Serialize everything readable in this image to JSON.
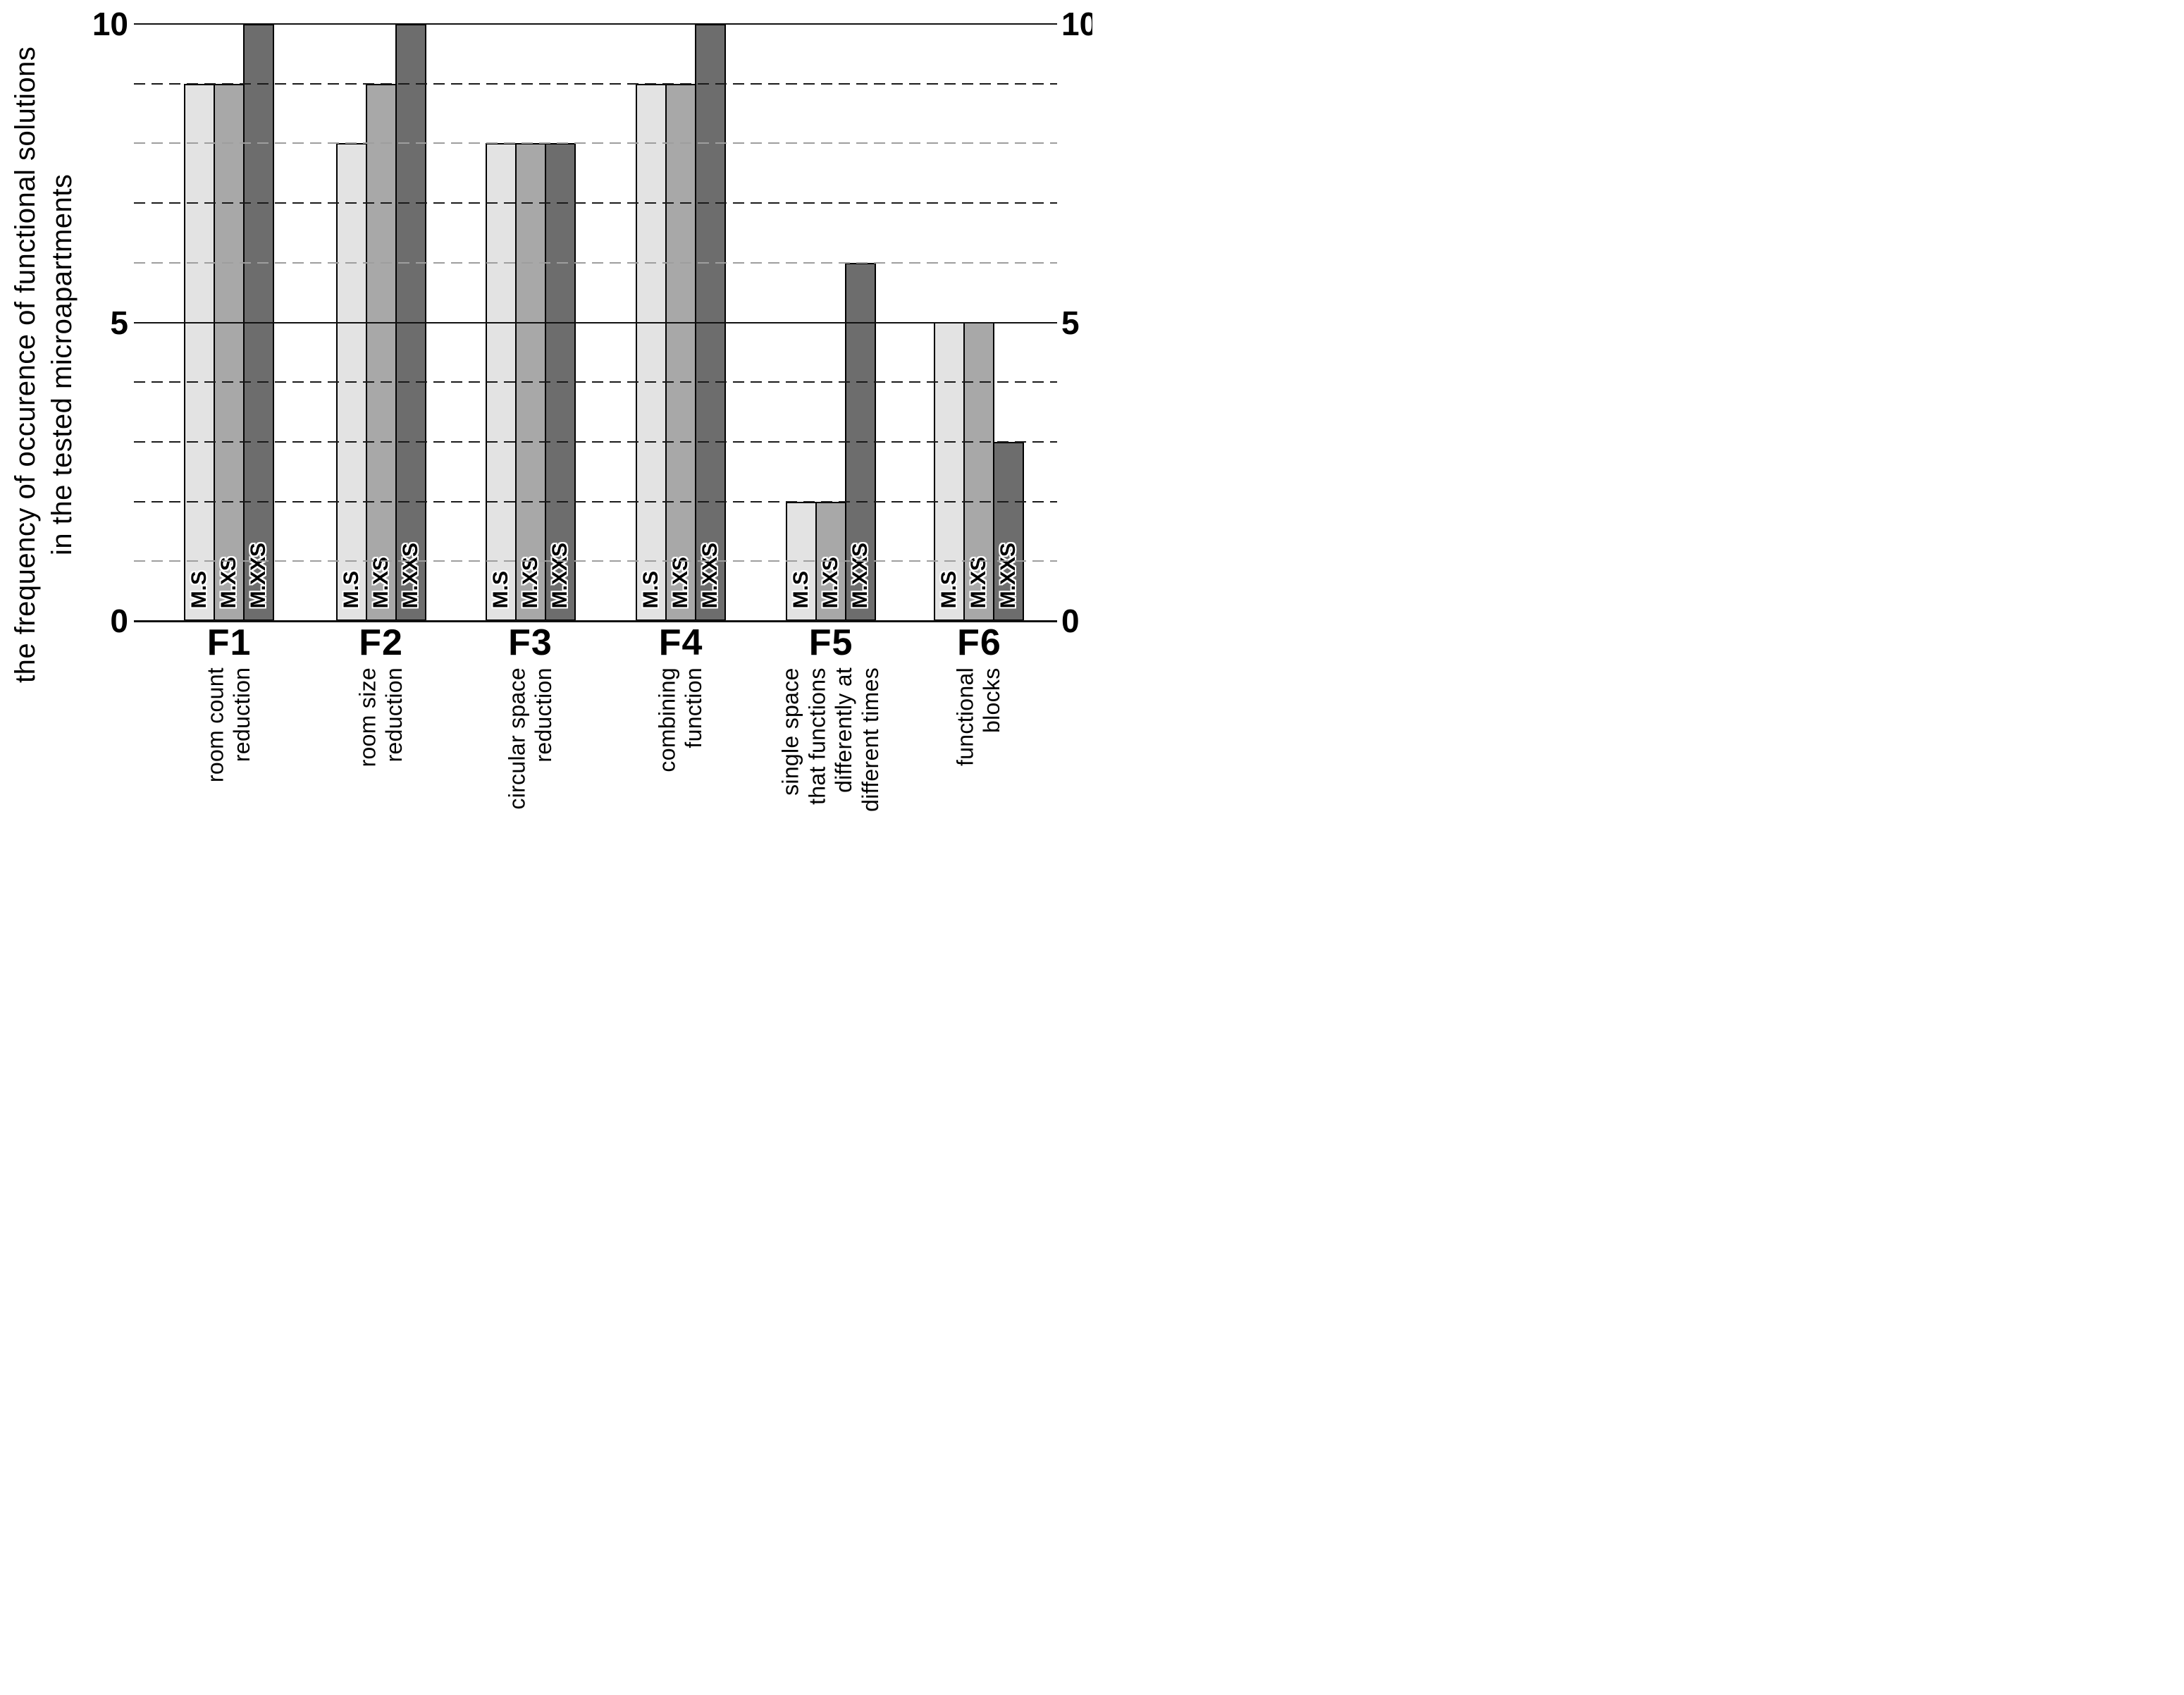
{
  "chart_data": {
    "type": "bar",
    "title": "",
    "ylabel": "the frequency of occurence of functional solutions in the tested microapartments",
    "ylabel_text": "the frequency of occurence of functional solutions\nin the tested microapartments",
    "xlabel": "",
    "ylim": [
      0,
      10
    ],
    "yticks": [
      0,
      5,
      10
    ],
    "grid": {
      "solid_values": [
        0,
        5,
        10
      ],
      "dashed_values": [
        1,
        2,
        3,
        4,
        6,
        7,
        8,
        9
      ],
      "light_dashed_values": [
        1,
        6,
        8
      ]
    },
    "legend_position": "labels-inside-bars",
    "categories": [
      {
        "code": "F1",
        "desc": "room count\nreduction"
      },
      {
        "code": "F2",
        "desc": "room size\nreduction"
      },
      {
        "code": "F3",
        "desc": "circular space\nreduction"
      },
      {
        "code": "F4",
        "desc": "combining\nfunction"
      },
      {
        "code": "F5",
        "desc": "single space\nthat functions\ndifferently at\ndifferent times"
      },
      {
        "code": "F6",
        "desc": "functional\nblocks"
      }
    ],
    "series": [
      {
        "name": "M.S",
        "color": "#e3e3e3",
        "values": [
          9,
          8,
          8,
          9,
          2,
          5
        ]
      },
      {
        "name": "M.XS",
        "color": "#a8a8a8",
        "values": [
          9,
          9,
          8,
          9,
          2,
          5
        ]
      },
      {
        "name": "M.XXS",
        "color": "#6d6d6d",
        "values": [
          10,
          10,
          8,
          10,
          6,
          3
        ]
      }
    ],
    "colors": {
      "background": "#ffffff",
      "text": "#000000",
      "bar_border": "#000000",
      "grid_solid": "#111111",
      "grid_dashed_dark": "#1a1a1a",
      "grid_dashed_light": "#9e9e9e"
    },
    "group_centers_pct": [
      10.31,
      26.76,
      42.94,
      59.24,
      75.5,
      91.56
    ]
  }
}
